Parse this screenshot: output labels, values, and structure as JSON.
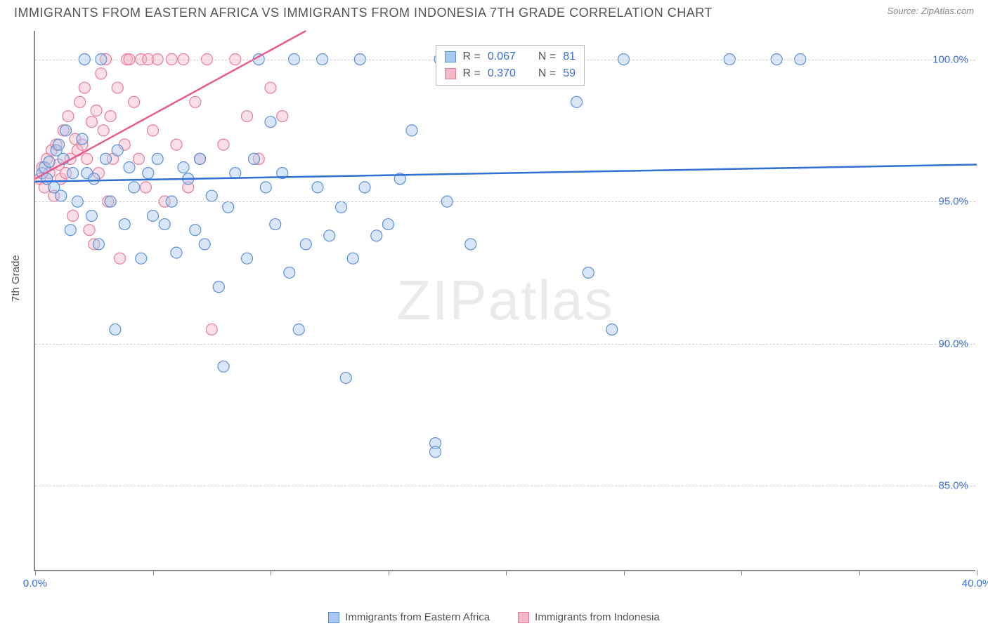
{
  "title": "IMMIGRANTS FROM EASTERN AFRICA VS IMMIGRANTS FROM INDONESIA 7TH GRADE CORRELATION CHART",
  "source": "Source: ZipAtlas.com",
  "y_axis_title": "7th Grade",
  "watermark": "ZIPatlas",
  "chart": {
    "type": "scatter",
    "xlim": [
      0,
      40
    ],
    "ylim": [
      82,
      101
    ],
    "x_ticks": [
      0,
      5,
      10,
      15,
      20,
      25,
      30,
      35,
      40
    ],
    "x_tick_labels": {
      "0": "0.0%",
      "40": "40.0%"
    },
    "y_ticks": [
      85,
      90,
      95,
      100
    ],
    "y_tick_labels": [
      "85.0%",
      "90.0%",
      "95.0%",
      "100.0%"
    ],
    "background_color": "#ffffff",
    "grid_color": "#cccccc",
    "axis_color": "#888888",
    "label_color": "#3b6fd6",
    "marker_radius": 8,
    "marker_opacity": 0.45,
    "line_width": 2.5,
    "series": [
      {
        "name": "Immigrants from Eastern Africa",
        "color_fill": "#a8c8f0",
        "color_stroke": "#5b8fd6",
        "line_color": "#2f6fd6",
        "R": "0.067",
        "N": "81",
        "trend": {
          "x1": 0,
          "y1": 95.7,
          "x2": 40,
          "y2": 96.3
        },
        "points": [
          [
            0.3,
            96.0
          ],
          [
            0.4,
            96.2
          ],
          [
            0.5,
            95.8
          ],
          [
            0.6,
            96.4
          ],
          [
            0.8,
            95.5
          ],
          [
            0.9,
            96.8
          ],
          [
            1.0,
            97.0
          ],
          [
            1.1,
            95.2
          ],
          [
            1.2,
            96.5
          ],
          [
            1.3,
            97.5
          ],
          [
            1.5,
            94.0
          ],
          [
            1.6,
            96.0
          ],
          [
            1.8,
            95.0
          ],
          [
            2.0,
            97.2
          ],
          [
            2.1,
            100.0
          ],
          [
            2.2,
            96.0
          ],
          [
            2.4,
            94.5
          ],
          [
            2.5,
            95.8
          ],
          [
            2.7,
            93.5
          ],
          [
            2.8,
            100.0
          ],
          [
            3.0,
            96.5
          ],
          [
            3.2,
            95.0
          ],
          [
            3.4,
            90.5
          ],
          [
            3.5,
            96.8
          ],
          [
            3.8,
            94.2
          ],
          [
            4.0,
            96.2
          ],
          [
            4.2,
            95.5
          ],
          [
            4.5,
            93.0
          ],
          [
            4.8,
            96.0
          ],
          [
            5.0,
            94.5
          ],
          [
            5.2,
            96.5
          ],
          [
            5.5,
            94.2
          ],
          [
            5.8,
            95.0
          ],
          [
            6.0,
            93.2
          ],
          [
            6.3,
            96.2
          ],
          [
            6.5,
            95.8
          ],
          [
            6.8,
            94.0
          ],
          [
            7.0,
            96.5
          ],
          [
            7.2,
            93.5
          ],
          [
            7.5,
            95.2
          ],
          [
            7.8,
            92.0
          ],
          [
            8.0,
            89.2
          ],
          [
            8.2,
            94.8
          ],
          [
            8.5,
            96.0
          ],
          [
            9.0,
            93.0
          ],
          [
            9.3,
            96.5
          ],
          [
            9.5,
            100.0
          ],
          [
            9.8,
            95.5
          ],
          [
            10.0,
            97.8
          ],
          [
            10.2,
            94.2
          ],
          [
            10.5,
            96.0
          ],
          [
            10.8,
            92.5
          ],
          [
            11.0,
            100.0
          ],
          [
            11.2,
            90.5
          ],
          [
            11.5,
            93.5
          ],
          [
            12.0,
            95.5
          ],
          [
            12.2,
            100.0
          ],
          [
            12.5,
            93.8
          ],
          [
            13.0,
            94.8
          ],
          [
            13.2,
            88.8
          ],
          [
            13.5,
            93.0
          ],
          [
            13.8,
            100.0
          ],
          [
            14.0,
            95.5
          ],
          [
            14.5,
            93.8
          ],
          [
            15.0,
            94.2
          ],
          [
            15.5,
            95.8
          ],
          [
            16.0,
            97.5
          ],
          [
            17.0,
            86.5
          ],
          [
            17.0,
            86.2
          ],
          [
            17.2,
            100.0
          ],
          [
            17.5,
            95.0
          ],
          [
            18.5,
            93.5
          ],
          [
            20.0,
            100.0
          ],
          [
            21.5,
            100.0
          ],
          [
            23.0,
            98.5
          ],
          [
            23.5,
            92.5
          ],
          [
            24.5,
            90.5
          ],
          [
            25.0,
            100.0
          ],
          [
            29.5,
            100.0
          ],
          [
            31.5,
            100.0
          ],
          [
            32.5,
            100.0
          ]
        ]
      },
      {
        "name": "Immigrants from Indonesia",
        "color_fill": "#f5b8c8",
        "color_stroke": "#e87a9a",
        "line_color": "#e85a8a",
        "R": "0.370",
        "N": "59",
        "trend": {
          "x1": 0,
          "y1": 95.8,
          "x2": 11.5,
          "y2": 101.0
        },
        "points": [
          [
            0.2,
            95.8
          ],
          [
            0.3,
            96.2
          ],
          [
            0.4,
            95.5
          ],
          [
            0.5,
            96.5
          ],
          [
            0.6,
            96.0
          ],
          [
            0.7,
            96.8
          ],
          [
            0.8,
            95.2
          ],
          [
            0.9,
            97.0
          ],
          [
            1.0,
            96.3
          ],
          [
            1.1,
            95.8
          ],
          [
            1.2,
            97.5
          ],
          [
            1.3,
            96.0
          ],
          [
            1.4,
            98.0
          ],
          [
            1.5,
            96.5
          ],
          [
            1.6,
            94.5
          ],
          [
            1.7,
            97.2
          ],
          [
            1.8,
            96.8
          ],
          [
            1.9,
            98.5
          ],
          [
            2.0,
            97.0
          ],
          [
            2.1,
            99.0
          ],
          [
            2.2,
            96.5
          ],
          [
            2.3,
            94.0
          ],
          [
            2.4,
            97.8
          ],
          [
            2.5,
            93.5
          ],
          [
            2.6,
            98.2
          ],
          [
            2.7,
            96.0
          ],
          [
            2.8,
            99.5
          ],
          [
            2.9,
            97.5
          ],
          [
            3.0,
            100.0
          ],
          [
            3.1,
            95.0
          ],
          [
            3.2,
            98.0
          ],
          [
            3.3,
            96.5
          ],
          [
            3.5,
            99.0
          ],
          [
            3.6,
            93.0
          ],
          [
            3.8,
            97.0
          ],
          [
            3.9,
            100.0
          ],
          [
            4.0,
            100.0
          ],
          [
            4.2,
            98.5
          ],
          [
            4.4,
            96.5
          ],
          [
            4.5,
            100.0
          ],
          [
            4.7,
            95.5
          ],
          [
            4.8,
            100.0
          ],
          [
            5.0,
            97.5
          ],
          [
            5.2,
            100.0
          ],
          [
            5.5,
            95.0
          ],
          [
            5.8,
            100.0
          ],
          [
            6.0,
            97.0
          ],
          [
            6.3,
            100.0
          ],
          [
            6.5,
            95.5
          ],
          [
            6.8,
            98.5
          ],
          [
            7.0,
            96.5
          ],
          [
            7.3,
            100.0
          ],
          [
            7.5,
            90.5
          ],
          [
            8.0,
            97.0
          ],
          [
            8.5,
            100.0
          ],
          [
            9.0,
            98.0
          ],
          [
            9.5,
            96.5
          ],
          [
            10.0,
            99.0
          ],
          [
            10.5,
            98.0
          ]
        ]
      }
    ]
  },
  "legend_bottom": [
    {
      "label": "Immigrants from Eastern Africa",
      "fill": "#a8c8f0",
      "stroke": "#5b8fd6"
    },
    {
      "label": "Immigrants from Indonesia",
      "fill": "#f5b8c8",
      "stroke": "#e87a9a"
    }
  ],
  "stat_box": {
    "rows": [
      {
        "swatch_fill": "#a8c8f0",
        "swatch_stroke": "#5b8fd6",
        "r_label": "R =",
        "r_val": "0.067",
        "n_label": "N =",
        "n_val": "81"
      },
      {
        "swatch_fill": "#f5b8c8",
        "swatch_stroke": "#e87a9a",
        "r_label": "R =",
        "r_val": "0.370",
        "n_label": "N =",
        "n_val": "59"
      }
    ]
  }
}
